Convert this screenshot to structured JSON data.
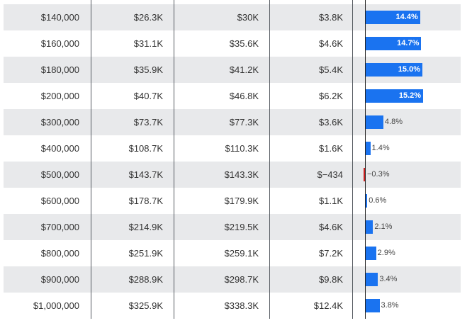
{
  "colors": {
    "positive_bar": "#1a73f0",
    "negative_bar": "#c81e1e",
    "row_shade": "#e8e9eb"
  },
  "rows": [
    {
      "c0": "$140,000",
      "c1": "$26.3K",
      "c2": "$30K",
      "c3": "$3.8K",
      "pct": 14.4,
      "pct_label": "14.4%"
    },
    {
      "c0": "$160,000",
      "c1": "$31.1K",
      "c2": "$35.6K",
      "c3": "$4.6K",
      "pct": 14.7,
      "pct_label": "14.7%"
    },
    {
      "c0": "$180,000",
      "c1": "$35.9K",
      "c2": "$41.2K",
      "c3": "$5.4K",
      "pct": 15.0,
      "pct_label": "15.0%"
    },
    {
      "c0": "$200,000",
      "c1": "$40.7K",
      "c2": "$46.8K",
      "c3": "$6.2K",
      "pct": 15.2,
      "pct_label": "15.2%"
    },
    {
      "c0": "$300,000",
      "c1": "$73.7K",
      "c2": "$77.3K",
      "c3": "$3.6K",
      "pct": 4.8,
      "pct_label": "4.8%"
    },
    {
      "c0": "$400,000",
      "c1": "$108.7K",
      "c2": "$110.3K",
      "c3": "$1.6K",
      "pct": 1.4,
      "pct_label": "1.4%"
    },
    {
      "c0": "$500,000",
      "c1": "$143.7K",
      "c2": "$143.3K",
      "c3": "$−434",
      "pct": -0.3,
      "pct_label": "−0.3%"
    },
    {
      "c0": "$600,000",
      "c1": "$178.7K",
      "c2": "$179.9K",
      "c3": "$1.1K",
      "pct": 0.6,
      "pct_label": "0.6%"
    },
    {
      "c0": "$700,000",
      "c1": "$214.9K",
      "c2": "$219.5K",
      "c3": "$4.6K",
      "pct": 2.1,
      "pct_label": "2.1%"
    },
    {
      "c0": "$800,000",
      "c1": "$251.9K",
      "c2": "$259.1K",
      "c3": "$7.2K",
      "pct": 2.9,
      "pct_label": "2.9%"
    },
    {
      "c0": "$900,000",
      "c1": "$288.9K",
      "c2": "$298.7K",
      "c3": "$9.8K",
      "pct": 3.4,
      "pct_label": "3.4%"
    },
    {
      "c0": "$1,000,000",
      "c1": "$325.9K",
      "c2": "$338.3K",
      "c3": "$12.4K",
      "pct": 3.8,
      "pct_label": "3.8%"
    }
  ]
}
